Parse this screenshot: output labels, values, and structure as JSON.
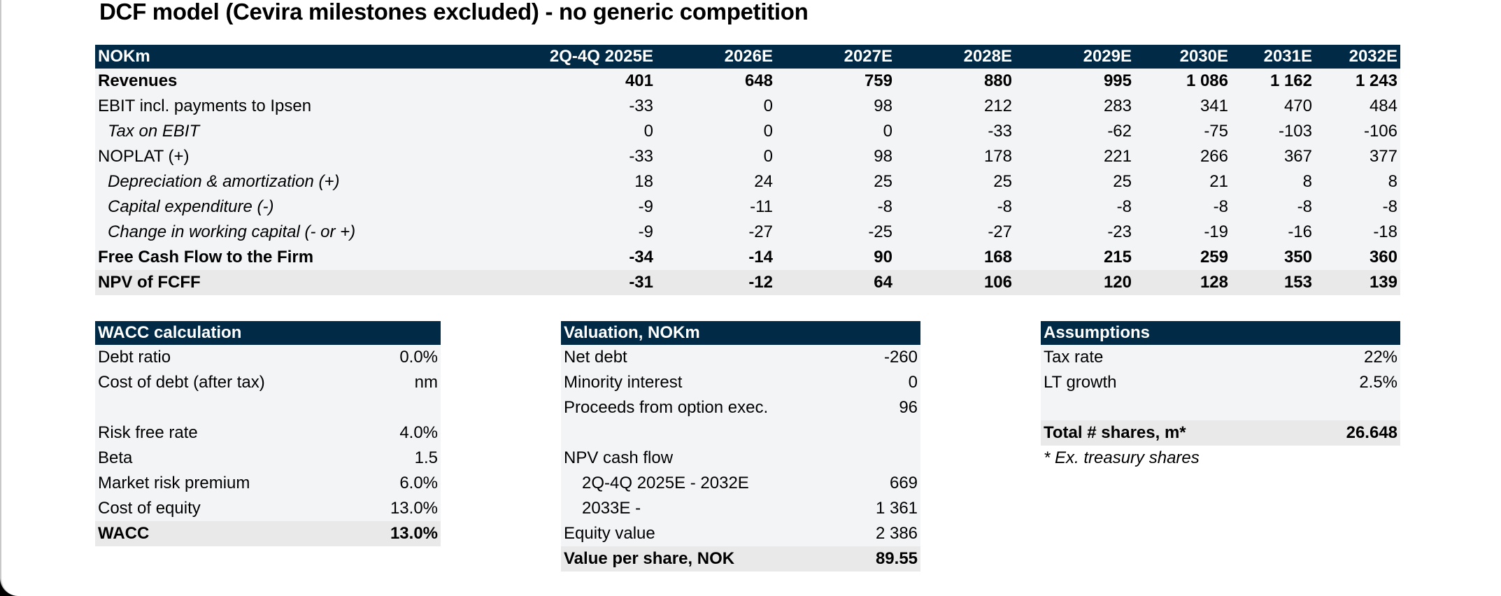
{
  "title": "DCF model (Cevira milestones excluded) - no generic competition",
  "dcf": {
    "header": [
      "NOKm",
      "2Q-4Q 2025E",
      "2026E",
      "2027E",
      "2028E",
      "2029E",
      "2030E",
      "2031E",
      "2032E"
    ],
    "rows": [
      {
        "label": "Revenues",
        "values": [
          "401",
          "648",
          "759",
          "880",
          "995",
          "1 086",
          "1 162",
          "1 243"
        ]
      },
      {
        "label": "EBIT incl. payments to Ipsen",
        "values": [
          "-33",
          "0",
          "98",
          "212",
          "283",
          "341",
          "470",
          "484"
        ]
      },
      {
        "label": "Tax on EBIT",
        "values": [
          "0",
          "0",
          "0",
          "-33",
          "-62",
          "-75",
          "-103",
          "-106"
        ]
      },
      {
        "label": "NOPLAT (+)",
        "values": [
          "-33",
          "0",
          "98",
          "178",
          "221",
          "266",
          "367",
          "377"
        ]
      },
      {
        "label": "Depreciation & amortization (+)",
        "values": [
          "18",
          "24",
          "25",
          "25",
          "25",
          "21",
          "8",
          "8"
        ]
      },
      {
        "label": "Capital expenditure (-)",
        "values": [
          "-9",
          "-11",
          "-8",
          "-8",
          "-8",
          "-8",
          "-8",
          "-8"
        ]
      },
      {
        "label": "Change in working capital (- or +)",
        "values": [
          "-9",
          "-27",
          "-25",
          "-27",
          "-23",
          "-19",
          "-16",
          "-18"
        ]
      },
      {
        "label": "Free Cash Flow to the Firm",
        "values": [
          "-34",
          "-14",
          "90",
          "168",
          "215",
          "259",
          "350",
          "360"
        ]
      },
      {
        "label": "NPV of FCFF",
        "values": [
          "-31",
          "-12",
          "64",
          "106",
          "120",
          "128",
          "153",
          "139"
        ]
      }
    ]
  },
  "wacc": {
    "header": "WACC calculation",
    "rows": [
      {
        "label": "Debt ratio",
        "value": "0.0%"
      },
      {
        "label": "Cost of debt (after tax)",
        "value": "nm"
      },
      {
        "label": "",
        "value": ""
      },
      {
        "label": "Risk free rate",
        "value": "4.0%"
      },
      {
        "label": "Beta",
        "value": "1.5"
      },
      {
        "label": "Market risk premium",
        "value": "6.0%"
      },
      {
        "label": "Cost of equity",
        "value": "13.0%"
      },
      {
        "label": "WACC",
        "value": "13.0%"
      }
    ]
  },
  "valuation": {
    "header": "Valuation, NOKm",
    "rows": [
      {
        "label": "Net debt",
        "value": "-260"
      },
      {
        "label": "Minority interest",
        "value": "0"
      },
      {
        "label": "Proceeds from option exec.",
        "value": "96"
      },
      {
        "label": "",
        "value": ""
      },
      {
        "label": "NPV cash flow",
        "value": ""
      },
      {
        "label": "2Q-4Q 2025E - 2032E",
        "value": "669"
      },
      {
        "label": "2033E -",
        "value": "1 361"
      },
      {
        "label": "Equity value",
        "value": "2 386"
      },
      {
        "label": "Value per share, NOK",
        "value": "89.55"
      }
    ]
  },
  "assumptions": {
    "header": "Assumptions",
    "rows": [
      {
        "label": "Tax rate",
        "value": "22%"
      },
      {
        "label": "LT growth",
        "value": "2.5%"
      },
      {
        "label": "",
        "value": ""
      },
      {
        "label": "Total # shares, m*",
        "value": "26.648"
      }
    ],
    "note": "* Ex. treasury shares"
  }
}
